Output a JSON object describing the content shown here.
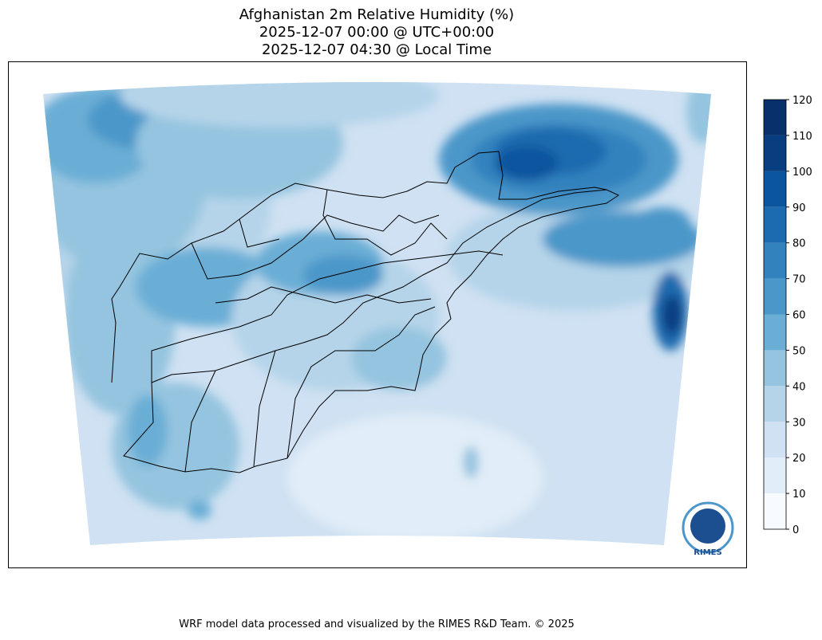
{
  "title": [
    "Afghanistan 2m Relative Humidity (%)",
    "2025-12-07 00:00 @ UTC+00:00",
    "2025-12-07 04:30 @ Local Time"
  ],
  "colorbar": {
    "ticks": [
      0,
      10,
      20,
      30,
      40,
      50,
      60,
      70,
      80,
      90,
      100,
      110,
      120
    ],
    "colors": [
      "#f7fbff",
      "#e1edf8",
      "#cfe1f2",
      "#b5d4e9",
      "#94c4df",
      "#6aaed6",
      "#4b97c9",
      "#3282be",
      "#1c6aaf",
      "#0b559f",
      "#083d7f",
      "#08306b"
    ]
  },
  "logo": "RIMES",
  "footer": "WRF model data processed and visualized by the RIMES R&D Team. © 2025"
}
